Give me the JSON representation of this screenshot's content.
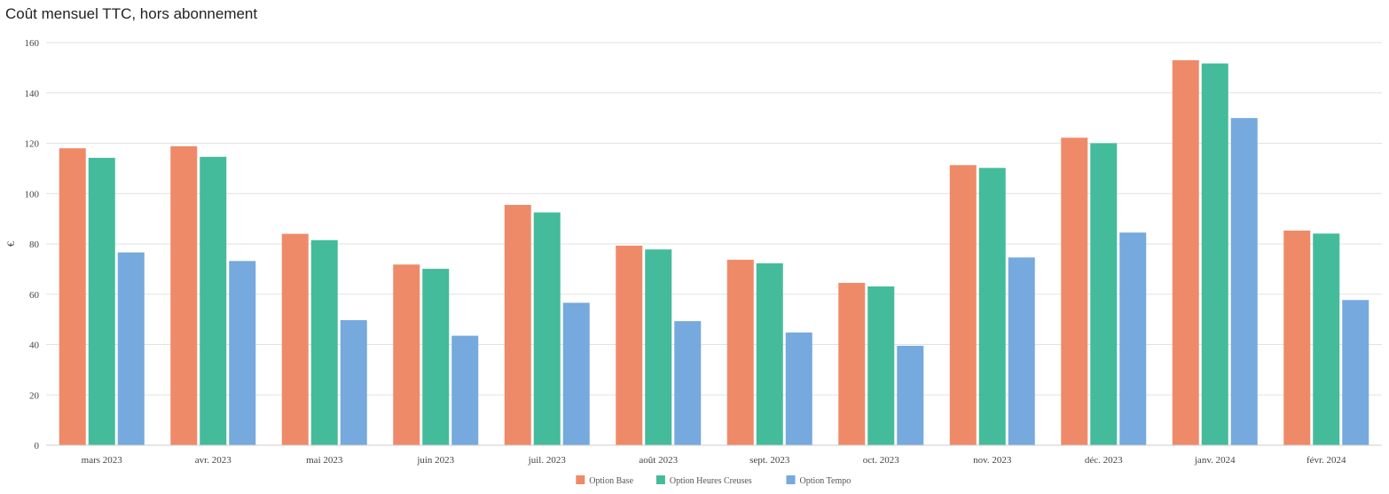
{
  "chart_data": {
    "type": "bar",
    "title": "Coût mensuel TTC, hors abonnement",
    "xlabel": "",
    "ylabel": "€",
    "ylim": [
      0,
      160
    ],
    "yticks": [
      0,
      20,
      40,
      60,
      80,
      100,
      120,
      140,
      160
    ],
    "grid": true,
    "legend_position": "bottom",
    "categories": [
      "mars 2023",
      "avr. 2023",
      "mai 2023",
      "juin 2023",
      "juil. 2023",
      "août 2023",
      "sept. 2023",
      "oct. 2023",
      "nov. 2023",
      "déc. 2023",
      "janv. 2024",
      "févr. 2024"
    ],
    "series": [
      {
        "name": "Option Base",
        "color": "#ef8a68",
        "values": [
          118,
          118.8,
          84,
          71.8,
          95.5,
          79.3,
          73.7,
          64.5,
          111.3,
          122.2,
          153,
          85.3
        ]
      },
      {
        "name": "Option Heures Creuses",
        "color": "#44bb9a",
        "values": [
          114.2,
          114.6,
          81.5,
          70.1,
          92.5,
          77.8,
          72.3,
          63.1,
          110.2,
          120,
          151.7,
          84.1
        ]
      },
      {
        "name": "Option Tempo",
        "color": "#76a9dd",
        "values": [
          76.6,
          73.2,
          49.7,
          43.5,
          56.6,
          49.3,
          44.8,
          39.5,
          74.6,
          84.5,
          130,
          57.7
        ]
      }
    ]
  }
}
